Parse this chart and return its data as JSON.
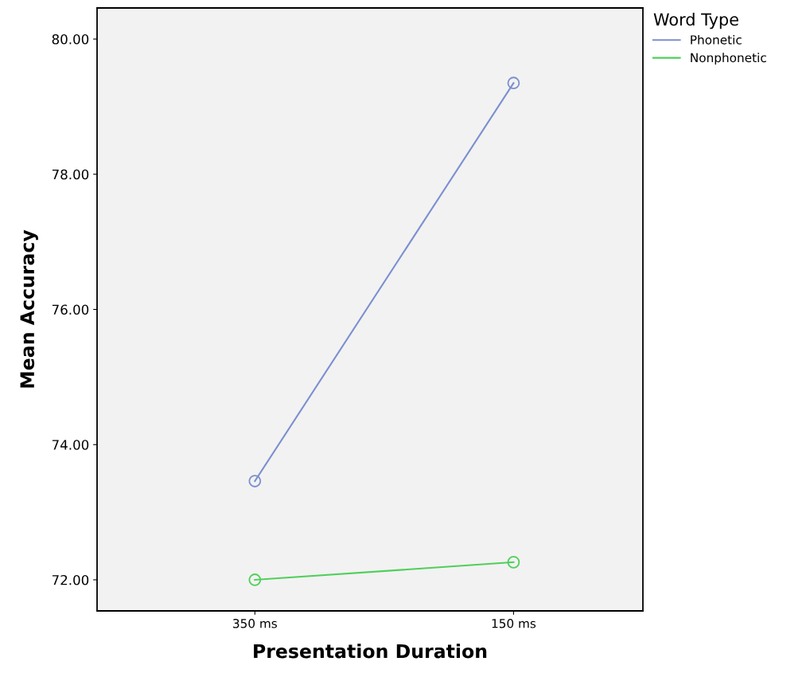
{
  "chart_data": {
    "type": "line",
    "xlabel": "Presentation Duration",
    "ylabel": "Mean Accuracy",
    "legend_title": "Word Type",
    "categories": [
      "350 ms",
      "150 ms"
    ],
    "series": [
      {
        "name": "Phonetic",
        "color": "#7b8fd0",
        "values": [
          73.46,
          79.35
        ]
      },
      {
        "name": "Nonphonetic",
        "color": "#4fcf5a",
        "values": [
          72.0,
          72.26
        ]
      }
    ],
    "ylim": [
      71.54,
      80.46
    ],
    "yticks": [
      {
        "value": 72,
        "label": "72.00"
      },
      {
        "value": 74,
        "label": "74.00"
      },
      {
        "value": 76,
        "label": "76.00"
      },
      {
        "value": 78,
        "label": "78.00"
      },
      {
        "value": 80,
        "label": "80.00"
      }
    ],
    "marker": "circle",
    "line_style": "solid",
    "grid": false,
    "legend": "right"
  }
}
